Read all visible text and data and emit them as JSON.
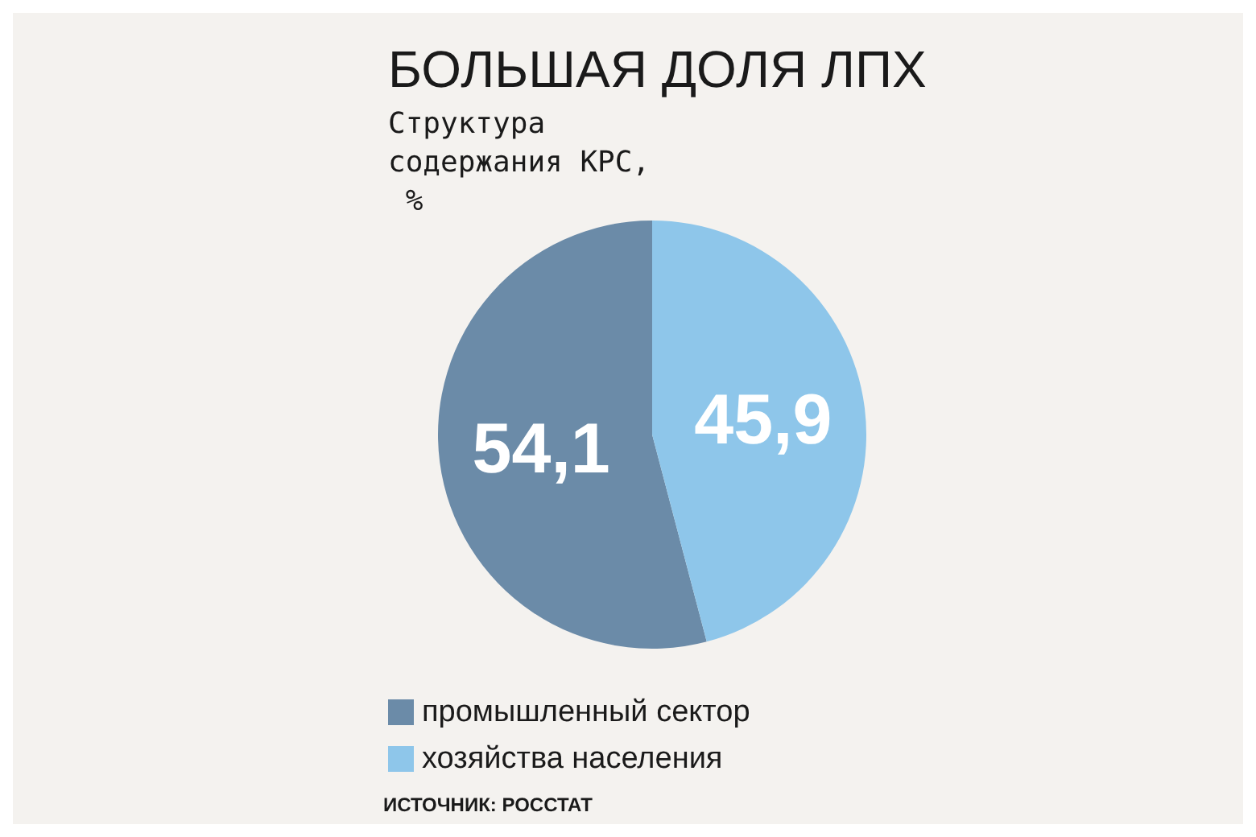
{
  "chart_data": {
    "type": "pie",
    "title": "БОЛЬШАЯ ДОЛЯ ЛПХ",
    "subtitle": "Структура содержания КРС, %",
    "categories": [
      "промышленный сектор",
      "хозяйства населения"
    ],
    "values": [
      54.1,
      45.9
    ],
    "colors": [
      "#6b8ba8",
      "#8ec6ea"
    ],
    "value_labels": [
      "54,1",
      "45,9"
    ],
    "legend": "bottom",
    "annotations": [
      "ИСТОЧНИК: РОССТАТ"
    ]
  }
}
